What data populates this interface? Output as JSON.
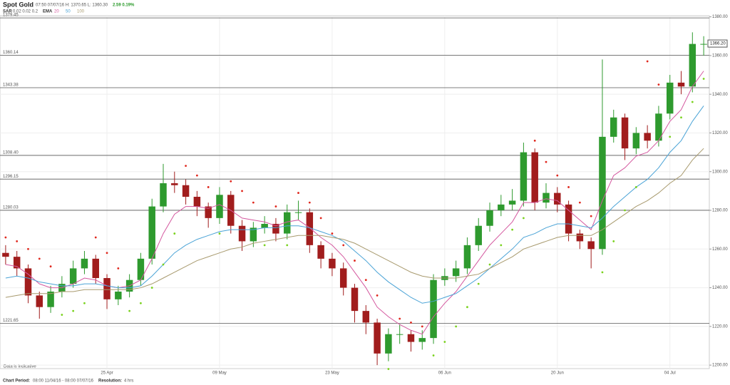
{
  "header": {
    "title": "Spot Gold",
    "quote": "07:50 07/07/16   H: 1370.65   L: 1360.30",
    "change": "2.59 0.19%",
    "sar_label": "SAR",
    "sar_params": "0.02 0.02 0.2",
    "ema_label": "EMA"
  },
  "footer": {
    "period_label": "Chart Period:",
    "period": "08:00 11/04/16 - 08:00 07/07/16",
    "resolution_label": "Resolution:",
    "resolution": "4 hrs"
  },
  "chart_data": {
    "type": "candlestick",
    "note": "Data is Indicative",
    "categories": [
      null,
      null,
      null,
      null,
      null,
      null,
      null,
      null,
      null,
      "25 Apr",
      null,
      null,
      null,
      null,
      null,
      null,
      null,
      null,
      null,
      "09 May",
      null,
      null,
      null,
      null,
      null,
      null,
      null,
      null,
      null,
      "23 May",
      null,
      null,
      null,
      null,
      null,
      null,
      null,
      null,
      null,
      "06 Jun",
      null,
      null,
      null,
      null,
      null,
      null,
      null,
      null,
      null,
      "20 Jun",
      null,
      null,
      null,
      null,
      null,
      null,
      null,
      null,
      null,
      "04 Jul",
      null,
      null,
      null
    ],
    "open": [
      1258,
      1256,
      1250,
      1236,
      1230,
      1238,
      1242,
      1250,
      1255,
      1245,
      1234,
      1238,
      1244,
      1255,
      1282,
      1294,
      1293,
      1287,
      1282,
      1276,
      1288,
      1272,
      1264,
      1271,
      1273,
      1268,
      1279,
      1279,
      1262,
      1255,
      1250,
      1240,
      1228,
      1222,
      1206,
      1216,
      1216,
      1212,
      1214,
      1244,
      1246,
      1250,
      1262,
      1272,
      1280,
      1283,
      1285,
      1310,
      1284,
      1289,
      1283,
      1268,
      1264,
      1260,
      1318,
      1328,
      1312,
      1320,
      1316,
      1330,
      1346,
      1344,
      1366
    ],
    "high": [
      1262,
      1259,
      1252,
      1238,
      1241,
      1246,
      1254,
      1259,
      1257,
      1247,
      1241,
      1247,
      1258,
      1286,
      1304,
      1300,
      1296,
      1290,
      1284,
      1292,
      1290,
      1275,
      1274,
      1277,
      1276,
      1283,
      1285,
      1281,
      1264,
      1258,
      1253,
      1242,
      1231,
      1224,
      1219,
      1221,
      1218,
      1218,
      1247,
      1250,
      1254,
      1266,
      1276,
      1284,
      1288,
      1291,
      1315,
      1312,
      1294,
      1292,
      1285,
      1270,
      1266,
      1358,
      1332,
      1330,
      1323,
      1324,
      1334,
      1350,
      1352,
      1372,
      1370
    ],
    "low": [
      1252,
      1246,
      1232,
      1224,
      1227,
      1235,
      1240,
      1247,
      1242,
      1229,
      1231,
      1235,
      1241,
      1252,
      1279,
      1289,
      1283,
      1277,
      1271,
      1273,
      1268,
      1259,
      1261,
      1268,
      1264,
      1265,
      1275,
      1258,
      1250,
      1246,
      1236,
      1222,
      1216,
      1200,
      1202,
      1211,
      1207,
      1208,
      1211,
      1241,
      1243,
      1247,
      1259,
      1269,
      1277,
      1280,
      1282,
      1280,
      1281,
      1279,
      1264,
      1260,
      1250,
      1257,
      1315,
      1306,
      1309,
      1312,
      1313,
      1327,
      1340,
      1341,
      1360
    ],
    "close": [
      1256,
      1250,
      1236,
      1230,
      1238,
      1242,
      1250,
      1255,
      1245,
      1234,
      1238,
      1244,
      1255,
      1282,
      1294,
      1293,
      1287,
      1282,
      1276,
      1288,
      1272,
      1264,
      1271,
      1273,
      1268,
      1279,
      1279,
      1262,
      1255,
      1250,
      1240,
      1228,
      1222,
      1206,
      1216,
      1216,
      1212,
      1214,
      1244,
      1246,
      1250,
      1262,
      1272,
      1280,
      1283,
      1285,
      1310,
      1284,
      1289,
      1283,
      1268,
      1264,
      1260,
      1318,
      1328,
      1312,
      1320,
      1316,
      1330,
      1346,
      1344,
      1366,
      1366
    ],
    "up_color": "#2e9a2e",
    "down_color": "#a11d1d",
    "ema": [
      {
        "name": "20",
        "color": "#d4589f",
        "values": [
          1252,
          1251,
          1247,
          1242,
          1240,
          1240,
          1242,
          1245,
          1244,
          1241,
          1240,
          1241,
          1244,
          1255,
          1268,
          1278,
          1282,
          1282,
          1281,
          1283,
          1280,
          1276,
          1275,
          1274,
          1272,
          1274,
          1275,
          1271,
          1266,
          1262,
          1256,
          1248,
          1240,
          1230,
          1225,
          1221,
          1218,
          1216,
          1225,
          1232,
          1238,
          1246,
          1254,
          1262,
          1268,
          1274,
          1284,
          1284,
          1286,
          1285,
          1280,
          1275,
          1270,
          1285,
          1298,
          1302,
          1308,
          1310,
          1316,
          1326,
          1332,
          1344,
          1352
        ]
      },
      {
        "name": "50",
        "color": "#4aa3d6",
        "values": [
          1245,
          1246,
          1245,
          1243,
          1242,
          1241,
          1241,
          1242,
          1242,
          1241,
          1240,
          1240,
          1241,
          1246,
          1252,
          1258,
          1262,
          1265,
          1267,
          1269,
          1270,
          1270,
          1270,
          1271,
          1271,
          1272,
          1272,
          1271,
          1269,
          1267,
          1264,
          1259,
          1254,
          1248,
          1243,
          1239,
          1235,
          1232,
          1233,
          1235,
          1237,
          1241,
          1245,
          1250,
          1255,
          1260,
          1266,
          1268,
          1271,
          1273,
          1273,
          1272,
          1271,
          1276,
          1282,
          1287,
          1292,
          1296,
          1302,
          1310,
          1316,
          1326,
          1334
        ]
      },
      {
        "name": "100",
        "color": "#a89a6e",
        "values": [
          1235,
          1236,
          1237,
          1237,
          1237,
          1238,
          1238,
          1239,
          1239,
          1239,
          1239,
          1239,
          1240,
          1242,
          1245,
          1248,
          1251,
          1254,
          1256,
          1258,
          1260,
          1261,
          1263,
          1264,
          1265,
          1266,
          1267,
          1267,
          1267,
          1266,
          1265,
          1263,
          1260,
          1257,
          1254,
          1251,
          1248,
          1246,
          1245,
          1245,
          1245,
          1246,
          1247,
          1250,
          1253,
          1256,
          1260,
          1262,
          1264,
          1266,
          1267,
          1267,
          1267,
          1270,
          1274,
          1278,
          1282,
          1285,
          1289,
          1294,
          1298,
          1306,
          1312
        ]
      }
    ],
    "sar": [
      {
        "color": "#e0281e",
        "values": [
          1266,
          1264,
          1260,
          1255,
          1251,
          null,
          null,
          null,
          1266,
          1258,
          1250,
          null,
          null,
          null,
          null,
          null,
          1303,
          1298,
          1292,
          null,
          1295,
          1290,
          1284,
          null,
          1282,
          null,
          1289,
          1284,
          1276,
          1268,
          1262,
          1254,
          1244,
          1236,
          null,
          1224,
          1222,
          1220,
          null,
          null,
          null,
          null,
          null,
          null,
          null,
          null,
          null,
          1316,
          1305,
          1298,
          1292,
          1284,
          1277,
          null,
          null,
          null,
          null,
          1357,
          1345,
          null,
          null,
          null,
          null
        ]
      },
      {
        "color": "#7ad21e",
        "values": [
          null,
          null,
          null,
          null,
          null,
          1226,
          1228,
          1232,
          null,
          null,
          null,
          1228,
          1232,
          1240,
          1252,
          1268,
          null,
          null,
          null,
          1268,
          null,
          null,
          null,
          1262,
          null,
          1262,
          null,
          null,
          null,
          null,
          null,
          null,
          null,
          null,
          1198,
          null,
          null,
          null,
          1205,
          1212,
          1220,
          1230,
          1242,
          1252,
          1262,
          1270,
          1276,
          null,
          null,
          null,
          null,
          null,
          null,
          1248,
          1264,
          1280,
          1292,
          null,
          null,
          1318,
          1328,
          1336,
          1348
        ]
      }
    ],
    "ylim": [
      1198.2,
      1380.6
    ],
    "yticks": [
      {
        "value": 1200,
        "label": "1200.00"
      },
      {
        "value": 1220,
        "label": "1220.00"
      },
      {
        "value": 1240,
        "label": "1240.00"
      },
      {
        "value": 1260,
        "label": "1260.00"
      },
      {
        "value": 1280,
        "label": "1280.00"
      },
      {
        "value": 1300,
        "label": "1300.00"
      },
      {
        "value": 1320,
        "label": "1320.00"
      },
      {
        "value": 1340,
        "label": "1340.00"
      },
      {
        "value": 1360,
        "label": "1360.00"
      },
      {
        "value": 1380,
        "label": "1380.00"
      }
    ],
    "levels": [
      {
        "value": 1379.45,
        "label": "1379.45"
      },
      {
        "value": 1360.14,
        "label": "1360.14"
      },
      {
        "value": 1343.38,
        "label": "1343.38"
      },
      {
        "value": 1308.4,
        "label": "1308.40"
      },
      {
        "value": 1296.15,
        "label": "1296.15"
      },
      {
        "value": 1280.03,
        "label": "1280.03"
      },
      {
        "value": 1221.65,
        "label": "1221.65"
      }
    ],
    "last_price": {
      "value": 1366.2,
      "label": "1366.20"
    },
    "grid": true
  }
}
